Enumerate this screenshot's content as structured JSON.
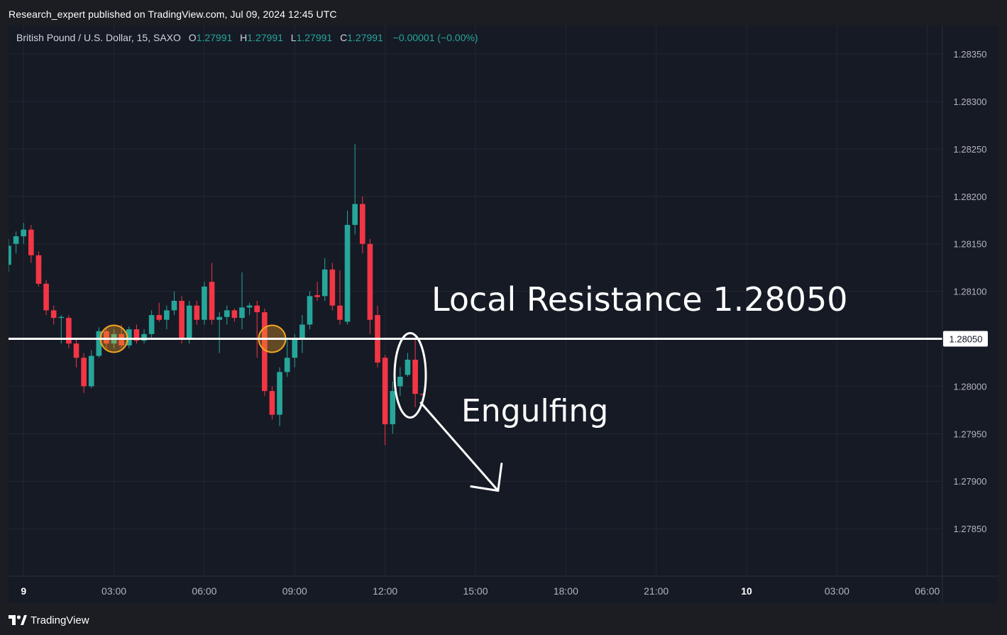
{
  "header": {
    "publish_line": "Research_expert published on TradingView.com, Jul 09, 2024 12:45 UTC"
  },
  "legend": {
    "symbol": "British Pound / U.S. Dollar, 15, SAXO",
    "open_key": "O",
    "open": "1.27991",
    "high_key": "H",
    "high": "1.27991",
    "low_key": "L",
    "low": "1.27991",
    "close_key": "C",
    "close": "1.27991",
    "change": "−0.00001 (−0.00%)"
  },
  "footer": {
    "brand": "TradingView"
  },
  "colors": {
    "bull": "#26a69a",
    "bear": "#f23645",
    "background": "#161a25",
    "grid": "#232732",
    "axis_text": "#b2b5be",
    "annotation": "#ffffff",
    "highlight_circle": "#f5a623"
  },
  "chart_data": {
    "type": "candlestick",
    "ylim": [
      1.278,
      1.2838
    ],
    "y_ticks": [
      "1.28350",
      "1.28300",
      "1.28250",
      "1.28200",
      "1.28150",
      "1.28100",
      "1.28000",
      "1.27950",
      "1.27900",
      "1.27850"
    ],
    "x_ticks": [
      {
        "label": "9",
        "t": "2024-07-09 00:00",
        "bold": true
      },
      {
        "label": "03:00",
        "t": "2024-07-09 03:00"
      },
      {
        "label": "06:00",
        "t": "2024-07-09 06:00"
      },
      {
        "label": "09:00",
        "t": "2024-07-09 09:00"
      },
      {
        "label": "12:00",
        "t": "2024-07-09 12:00"
      },
      {
        "label": "15:00",
        "t": "2024-07-09 15:00"
      },
      {
        "label": "18:00",
        "t": "2024-07-09 18:00"
      },
      {
        "label": "21:00",
        "t": "2024-07-09 21:00"
      },
      {
        "label": "10",
        "t": "2024-07-10 00:00",
        "bold": true
      },
      {
        "label": "03:00",
        "t": "2024-07-10 03:00"
      },
      {
        "label": "06:00",
        "t": "2024-07-10 06:00"
      }
    ],
    "xlim": [
      "2024-07-08 23:30",
      "2024-07-10 06:30"
    ],
    "candles": [
      {
        "t": "2024-07-08 23:30",
        "o": 1.28128,
        "h": 1.28155,
        "l": 1.2812,
        "c": 1.28148
      },
      {
        "t": "2024-07-08 23:45",
        "o": 1.2815,
        "h": 1.28163,
        "l": 1.2814,
        "c": 1.28158
      },
      {
        "t": "2024-07-09 00:00",
        "o": 1.28158,
        "h": 1.28172,
        "l": 1.2815,
        "c": 1.28165
      },
      {
        "t": "2024-07-09 00:15",
        "o": 1.28165,
        "h": 1.2817,
        "l": 1.2813,
        "c": 1.28138
      },
      {
        "t": "2024-07-09 00:30",
        "o": 1.28138,
        "h": 1.28142,
        "l": 1.28105,
        "c": 1.28108
      },
      {
        "t": "2024-07-09 00:45",
        "o": 1.28108,
        "h": 1.28112,
        "l": 1.28075,
        "c": 1.2808
      },
      {
        "t": "2024-07-09 01:00",
        "o": 1.2808,
        "h": 1.28085,
        "l": 1.28065,
        "c": 1.28072
      },
      {
        "t": "2024-07-09 01:15",
        "o": 1.28072,
        "h": 1.28075,
        "l": 1.28045,
        "c": 1.28073
      },
      {
        "t": "2024-07-09 01:30",
        "o": 1.28072,
        "h": 1.28075,
        "l": 1.2804,
        "c": 1.28045
      },
      {
        "t": "2024-07-09 01:45",
        "o": 1.28045,
        "h": 1.2805,
        "l": 1.2802,
        "c": 1.2803
      },
      {
        "t": "2024-07-09 02:00",
        "o": 1.2803,
        "h": 1.28035,
        "l": 1.27993,
        "c": 1.28
      },
      {
        "t": "2024-07-09 02:15",
        "o": 1.28,
        "h": 1.28038,
        "l": 1.27998,
        "c": 1.28032
      },
      {
        "t": "2024-07-09 02:30",
        "o": 1.28032,
        "h": 1.28062,
        "l": 1.2803,
        "c": 1.28058
      },
      {
        "t": "2024-07-09 02:45",
        "o": 1.28058,
        "h": 1.28062,
        "l": 1.2804,
        "c": 1.28045
      },
      {
        "t": "2024-07-09 03:00",
        "o": 1.28045,
        "h": 1.2806,
        "l": 1.2804,
        "c": 1.28055
      },
      {
        "t": "2024-07-09 03:15",
        "o": 1.28055,
        "h": 1.28065,
        "l": 1.2804,
        "c": 1.28043
      },
      {
        "t": "2024-07-09 03:30",
        "o": 1.28043,
        "h": 1.28063,
        "l": 1.2804,
        "c": 1.2806
      },
      {
        "t": "2024-07-09 03:45",
        "o": 1.2806,
        "h": 1.28065,
        "l": 1.28045,
        "c": 1.28048
      },
      {
        "t": "2024-07-09 04:00",
        "o": 1.28048,
        "h": 1.2806,
        "l": 1.28045,
        "c": 1.28055
      },
      {
        "t": "2024-07-09 04:15",
        "o": 1.28055,
        "h": 1.2808,
        "l": 1.2805,
        "c": 1.28075
      },
      {
        "t": "2024-07-09 04:30",
        "o": 1.28075,
        "h": 1.28088,
        "l": 1.28068,
        "c": 1.2807
      },
      {
        "t": "2024-07-09 04:45",
        "o": 1.2807,
        "h": 1.28085,
        "l": 1.2806,
        "c": 1.2808
      },
      {
        "t": "2024-07-09 05:00",
        "o": 1.2808,
        "h": 1.281,
        "l": 1.28075,
        "c": 1.2809
      },
      {
        "t": "2024-07-09 05:15",
        "o": 1.2809,
        "h": 1.28095,
        "l": 1.28045,
        "c": 1.2805
      },
      {
        "t": "2024-07-09 05:30",
        "o": 1.2805,
        "h": 1.2809,
        "l": 1.28045,
        "c": 1.28085
      },
      {
        "t": "2024-07-09 05:45",
        "o": 1.28085,
        "h": 1.2809,
        "l": 1.28065,
        "c": 1.2807
      },
      {
        "t": "2024-07-09 06:00",
        "o": 1.2807,
        "h": 1.2811,
        "l": 1.28065,
        "c": 1.28105
      },
      {
        "t": "2024-07-09 06:15",
        "o": 1.2811,
        "h": 1.2813,
        "l": 1.28065,
        "c": 1.2807
      },
      {
        "t": "2024-07-09 06:30",
        "o": 1.2807,
        "h": 1.28078,
        "l": 1.28035,
        "c": 1.28073
      },
      {
        "t": "2024-07-09 06:45",
        "o": 1.28073,
        "h": 1.28085,
        "l": 1.28065,
        "c": 1.2808
      },
      {
        "t": "2024-07-09 07:00",
        "o": 1.2808,
        "h": 1.28082,
        "l": 1.28068,
        "c": 1.28072
      },
      {
        "t": "2024-07-09 07:15",
        "o": 1.28072,
        "h": 1.2812,
        "l": 1.2806,
        "c": 1.28083
      },
      {
        "t": "2024-07-09 07:30",
        "o": 1.28083,
        "h": 1.28088,
        "l": 1.28075,
        "c": 1.28085
      },
      {
        "t": "2024-07-09 07:45",
        "o": 1.28085,
        "h": 1.2809,
        "l": 1.2803,
        "c": 1.28078
      },
      {
        "t": "2024-07-09 08:00",
        "o": 1.28078,
        "h": 1.28082,
        "l": 1.2799,
        "c": 1.27995
      },
      {
        "t": "2024-07-09 08:15",
        "o": 1.27995,
        "h": 1.28,
        "l": 1.27965,
        "c": 1.2797
      },
      {
        "t": "2024-07-09 08:30",
        "o": 1.2797,
        "h": 1.2802,
        "l": 1.27958,
        "c": 1.28015
      },
      {
        "t": "2024-07-09 08:45",
        "o": 1.28015,
        "h": 1.2805,
        "l": 1.2801,
        "c": 1.2803
      },
      {
        "t": "2024-07-09 09:00",
        "o": 1.2803,
        "h": 1.28055,
        "l": 1.2802,
        "c": 1.2805
      },
      {
        "t": "2024-07-09 09:15",
        "o": 1.2805,
        "h": 1.28075,
        "l": 1.28035,
        "c": 1.28065
      },
      {
        "t": "2024-07-09 09:30",
        "o": 1.28065,
        "h": 1.281,
        "l": 1.2806,
        "c": 1.28095
      },
      {
        "t": "2024-07-09 09:45",
        "o": 1.28096,
        "h": 1.2811,
        "l": 1.2809,
        "c": 1.28094
      },
      {
        "t": "2024-07-09 10:00",
        "o": 1.28095,
        "h": 1.28135,
        "l": 1.2809,
        "c": 1.28123
      },
      {
        "t": "2024-07-09 10:15",
        "o": 1.28123,
        "h": 1.2813,
        "l": 1.2808,
        "c": 1.28085
      },
      {
        "t": "2024-07-09 10:30",
        "o": 1.28085,
        "h": 1.28122,
        "l": 1.28065,
        "c": 1.2807
      },
      {
        "t": "2024-07-09 10:45",
        "o": 1.28068,
        "h": 1.28185,
        "l": 1.28065,
        "c": 1.2817
      },
      {
        "t": "2024-07-09 11:00",
        "o": 1.2817,
        "h": 1.28255,
        "l": 1.2816,
        "c": 1.28192
      },
      {
        "t": "2024-07-09 11:15",
        "o": 1.28192,
        "h": 1.282,
        "l": 1.2814,
        "c": 1.2815
      },
      {
        "t": "2024-07-09 11:30",
        "o": 1.2815,
        "h": 1.28155,
        "l": 1.28055,
        "c": 1.2807
      },
      {
        "t": "2024-07-09 11:45",
        "o": 1.28075,
        "h": 1.28085,
        "l": 1.2802,
        "c": 1.28025
      },
      {
        "t": "2024-07-09 12:00",
        "o": 1.2803,
        "h": 1.28033,
        "l": 1.27938,
        "c": 1.2796
      },
      {
        "t": "2024-07-09 12:15",
        "o": 1.2796,
        "h": 1.28005,
        "l": 1.2795,
        "c": 1.27995
      },
      {
        "t": "2024-07-09 12:30",
        "o": 1.28,
        "h": 1.2802,
        "l": 1.2799,
        "c": 1.2801
      },
      {
        "t": "2024-07-09 12:45",
        "o": 1.28012,
        "h": 1.28035,
        "l": 1.2801,
        "c": 1.28028
      },
      {
        "t": "2024-07-09 13:00",
        "o": 1.28028,
        "h": 1.2805,
        "l": 1.27978,
        "c": 1.27992
      },
      {
        "t": "2024-07-09 13:15",
        "o": 1.27992,
        "h": 1.27992,
        "l": 1.27991,
        "c": 1.27991
      }
    ],
    "horizontal_line": {
      "price": 1.2805,
      "label": "1.28050"
    },
    "annotations": {
      "resistance_text": "Local Resistance 1.28050",
      "engulfing_text": "Engulfing"
    },
    "highlight_circles": [
      {
        "t": "2024-07-09 03:00",
        "price": 1.2805
      },
      {
        "t": "2024-07-09 08:15",
        "price": 1.2805
      }
    ],
    "engulfing_ellipse": {
      "t_center": "2024-07-09 12:50",
      "price_center": 1.28012,
      "price_top": 1.2805,
      "price_bottom": 1.27973
    },
    "arrow": {
      "from": {
        "t": "2024-07-09 13:00",
        "price": 1.2799
      },
      "to": {
        "t": "2024-07-09 15:45",
        "price": 1.2789
      }
    }
  }
}
